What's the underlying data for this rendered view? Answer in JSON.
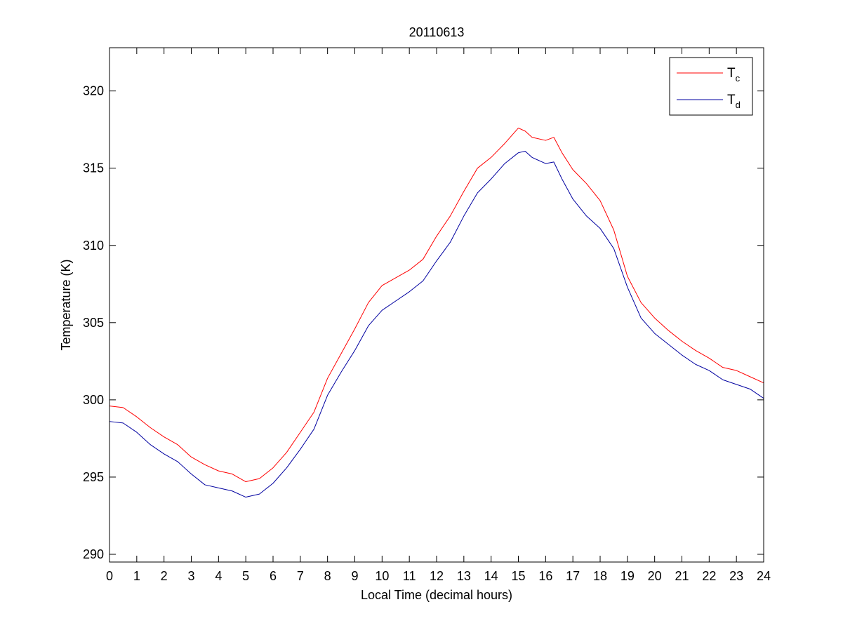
{
  "chart_data": {
    "type": "line",
    "title": "20110613",
    "xlabel": "Local Time (decimal hours)",
    "ylabel": "Temperature (K)",
    "xlim": [
      0,
      24
    ],
    "ylim": [
      289.5,
      322.8
    ],
    "xticks": [
      0,
      1,
      2,
      3,
      4,
      5,
      6,
      7,
      8,
      9,
      10,
      11,
      12,
      13,
      14,
      15,
      16,
      17,
      18,
      19,
      20,
      21,
      22,
      23,
      24
    ],
    "yticks": [
      290,
      295,
      300,
      305,
      310,
      315,
      320
    ],
    "grid": false,
    "legend_position": "top-right",
    "series": [
      {
        "name": "T_c",
        "legend_main": "T",
        "legend_sub": "c",
        "color": "#ff0000",
        "x": [
          0,
          0.5,
          1,
          1.5,
          2,
          2.5,
          3,
          3.5,
          4,
          4.5,
          5,
          5.5,
          6,
          6.5,
          7,
          7.5,
          8,
          8.5,
          9,
          9.5,
          10,
          10.5,
          11,
          11.5,
          12,
          12.5,
          13,
          13.5,
          14,
          14.5,
          15,
          15.25,
          15.5,
          16,
          16.3,
          16.6,
          17,
          17.5,
          18,
          18.5,
          19,
          19.5,
          20,
          20.5,
          21,
          21.5,
          22,
          22.5,
          23,
          23.5,
          24
        ],
        "y": [
          299.6,
          299.5,
          298.9,
          298.2,
          297.6,
          297.1,
          296.3,
          295.8,
          295.4,
          295.2,
          294.7,
          294.9,
          295.6,
          296.6,
          297.9,
          299.2,
          301.4,
          303.0,
          304.6,
          306.3,
          307.4,
          307.9,
          308.4,
          309.1,
          310.6,
          311.9,
          313.5,
          315.0,
          315.7,
          316.6,
          317.6,
          317.4,
          317.0,
          316.8,
          317.0,
          316.0,
          314.9,
          314.0,
          312.9,
          311.0,
          308.0,
          306.3,
          305.3,
          304.5,
          303.8,
          303.2,
          302.7,
          302.1,
          301.9,
          301.5,
          301.1
        ]
      },
      {
        "name": "T_d",
        "legend_main": "T",
        "legend_sub": "d",
        "color": "#0000a0",
        "x": [
          0,
          0.5,
          1,
          1.5,
          2,
          2.5,
          3,
          3.5,
          4,
          4.5,
          5,
          5.5,
          6,
          6.5,
          7,
          7.5,
          8,
          8.5,
          9,
          9.5,
          10,
          10.5,
          11,
          11.5,
          12,
          12.5,
          13,
          13.5,
          14,
          14.5,
          15,
          15.25,
          15.5,
          16,
          16.3,
          16.6,
          17,
          17.5,
          18,
          18.5,
          19,
          19.5,
          20,
          20.5,
          21,
          21.5,
          22,
          22.5,
          23,
          23.5,
          24
        ],
        "y": [
          298.6,
          298.5,
          297.9,
          297.1,
          296.5,
          296.0,
          295.2,
          294.5,
          294.3,
          294.1,
          293.7,
          293.9,
          294.6,
          295.6,
          296.8,
          298.1,
          300.3,
          301.8,
          303.2,
          304.8,
          305.8,
          306.4,
          307.0,
          307.7,
          309.0,
          310.2,
          311.9,
          313.4,
          314.3,
          315.3,
          316.0,
          316.1,
          315.7,
          315.3,
          315.4,
          314.3,
          313.0,
          311.9,
          311.1,
          309.8,
          307.3,
          305.3,
          304.3,
          303.6,
          302.9,
          302.3,
          301.9,
          301.3,
          301.0,
          300.7,
          300.1
        ]
      }
    ]
  }
}
